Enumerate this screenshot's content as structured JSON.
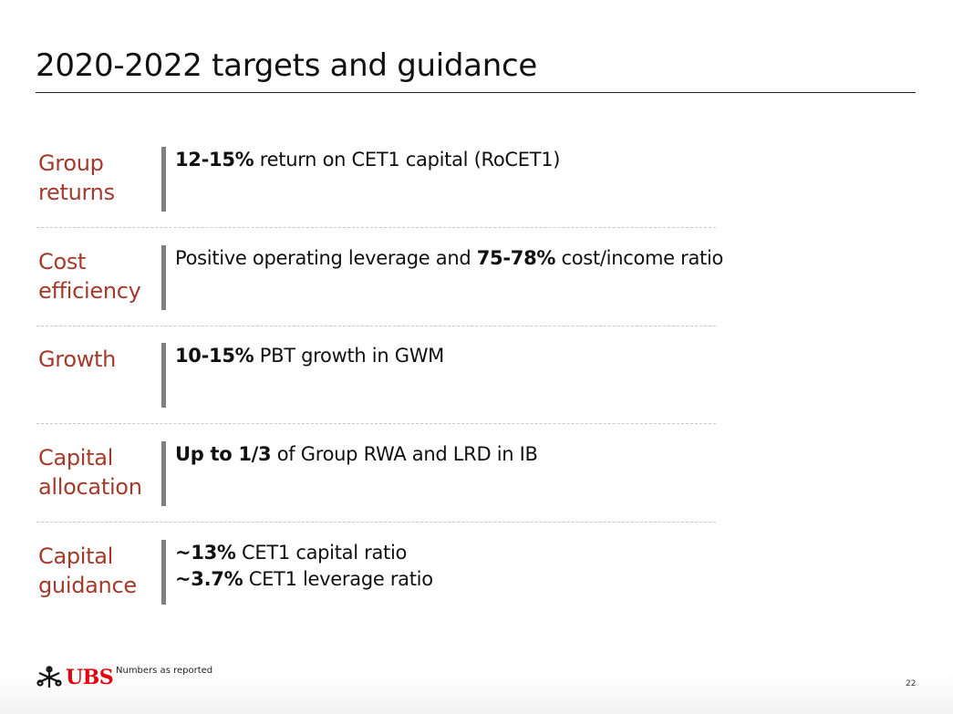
{
  "title": "2020-2022 targets and guidance",
  "rows": [
    {
      "label_line1": "Group",
      "label_line2": "returns",
      "lines": [
        {
          "bold": "12-15%",
          "pre": "",
          "post": " return on CET1 capital (RoCET1)"
        }
      ]
    },
    {
      "label_line1": "Cost",
      "label_line2": "efficiency",
      "lines": [
        {
          "pre": "Positive operating leverage and ",
          "bold": "75-78%",
          "post": " cost/income ratio"
        }
      ]
    },
    {
      "label_line1": "Growth",
      "label_line2": "",
      "lines": [
        {
          "pre": "",
          "bold": "10-15%",
          "post": " PBT growth in GWM"
        }
      ]
    },
    {
      "label_line1": "Capital",
      "label_line2": "allocation",
      "lines": [
        {
          "pre": "",
          "bold": "Up to 1/3",
          "post": " of Group RWA and LRD in IB"
        }
      ]
    },
    {
      "label_line1": "Capital",
      "label_line2": "guidance",
      "lines": [
        {
          "pre": "",
          "bold": "~13%",
          "post": " CET1 capital ratio"
        },
        {
          "pre": "",
          "bold": "~3.7%",
          "post": " CET1 leverage ratio"
        }
      ]
    }
  ],
  "footer": {
    "logo": "UBS",
    "note": "Numbers as reported",
    "page_number": "22"
  },
  "colors": {
    "label": "#a43a2c",
    "brand": "#e3000f",
    "bar": "#808080"
  }
}
